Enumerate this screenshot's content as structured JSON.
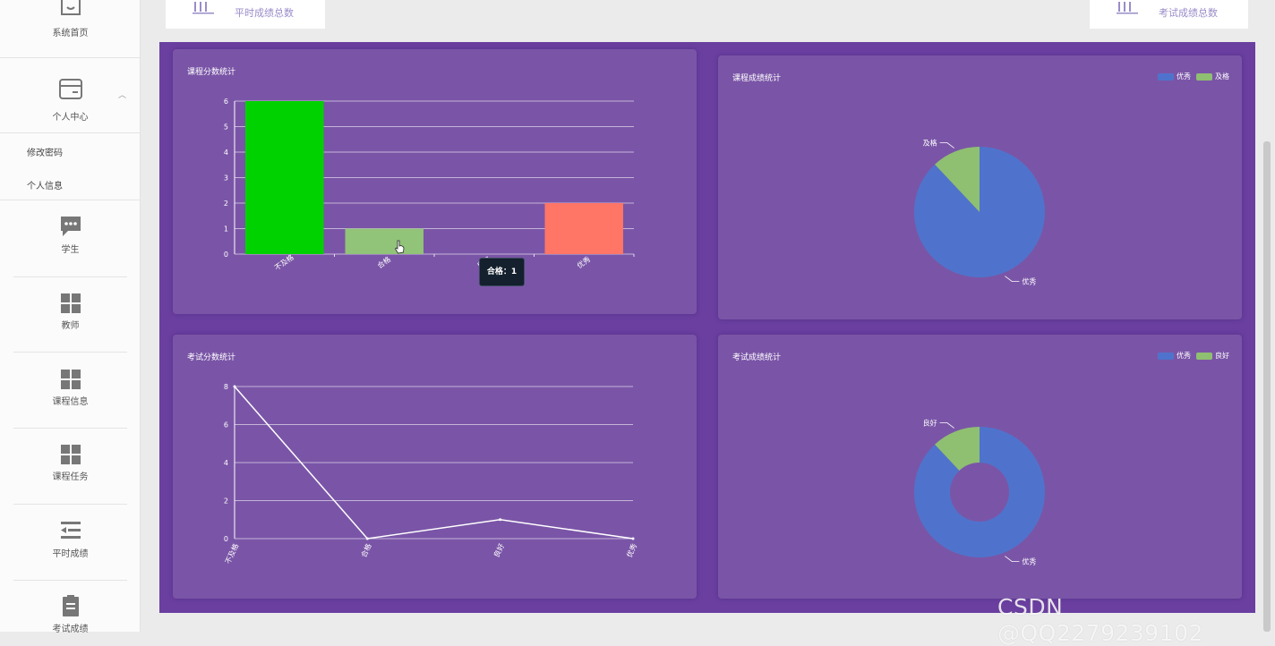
{
  "sidebar": {
    "home": "系统首页",
    "personal_center": "个人中心",
    "sub_change_password": "修改密码",
    "sub_personal_info": "个人信息",
    "student": "学生",
    "teacher": "教师",
    "course_info": "课程信息",
    "course_task": "课程任务",
    "regular_scores": "平时成绩",
    "exam_scores": "考试成绩"
  },
  "stats": {
    "regular_total_label": "平时成绩总数",
    "exam_total_label": "考试成绩总数"
  },
  "panels": {
    "course_score_stats": "课程分数统计",
    "course_grade_stats": "课程成绩统计",
    "exam_score_stats": "考试分数统计",
    "exam_grade_stats": "考试成绩统计"
  },
  "tooltip": "合格：1",
  "watermark": "CSDN @QQ2279239102",
  "chart_data": [
    {
      "type": "bar",
      "title": "课程分数统计",
      "categories": [
        "不及格",
        "合格",
        "良好",
        "优秀"
      ],
      "values": [
        6,
        1,
        0,
        2
      ],
      "colors": [
        "#00d200",
        "#91c379",
        "#91c379",
        "#ff7566"
      ],
      "yticks": [
        0,
        1,
        2,
        3,
        4,
        5,
        6
      ],
      "ylim": [
        0,
        6
      ]
    },
    {
      "type": "pie",
      "title": "课程成绩统计",
      "labels": [
        "优秀",
        "及格"
      ],
      "values": [
        88,
        12
      ],
      "colors": [
        "#4f73cc",
        "#8fbf71"
      ],
      "legend": "top-right"
    },
    {
      "type": "line",
      "title": "考试分数统计",
      "categories": [
        "不及格",
        "合格",
        "良好",
        "优秀"
      ],
      "values": [
        8,
        0,
        1,
        0
      ],
      "yticks": [
        0,
        2,
        4,
        6,
        8
      ],
      "ylim": [
        0,
        8
      ]
    },
    {
      "type": "pie",
      "title": "考试成绩统计",
      "labels": [
        "优秀",
        "良好"
      ],
      "values": [
        88,
        12
      ],
      "colors": [
        "#4f73cc",
        "#8fbf71"
      ],
      "donut": true,
      "legend": "top-right"
    }
  ]
}
